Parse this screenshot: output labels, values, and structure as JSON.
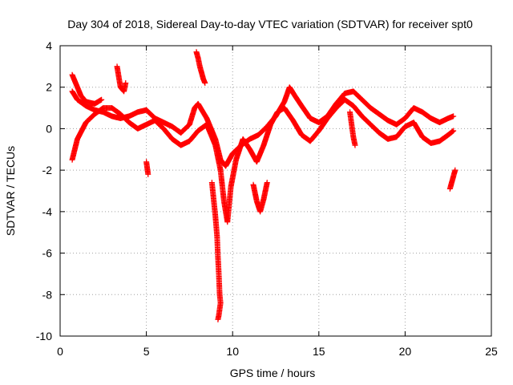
{
  "chart_data": {
    "type": "scatter",
    "title": "Day 304 of 2018, Sidereal Day-to-day VTEC variation (SDTVAR) for receiver spt0",
    "xlabel": "GPS time / hours",
    "ylabel": "SDTVAR / TECUs",
    "xlim": [
      0,
      25
    ],
    "ylim": [
      -10,
      4
    ],
    "xticks": [
      0,
      5,
      10,
      15,
      20,
      25
    ],
    "yticks": [
      -10,
      -8,
      -6,
      -4,
      -2,
      0,
      2,
      4
    ],
    "grid": true,
    "marker": "+",
    "series": [
      {
        "name": "SDTVAR",
        "color": "#ff0000",
        "tracks": [
          [
            [
              0.7,
              1.8
            ],
            [
              1.0,
              1.4
            ],
            [
              1.5,
              1.1
            ],
            [
              2.0,
              0.9
            ],
            [
              2.5,
              0.8
            ],
            [
              3.0,
              0.6
            ],
            [
              3.5,
              0.5
            ],
            [
              4.0,
              0.6
            ],
            [
              4.5,
              0.8
            ],
            [
              5.0,
              0.9
            ],
            [
              5.5,
              0.5
            ],
            [
              6.0,
              0.3
            ],
            [
              6.5,
              0.1
            ],
            [
              7.0,
              -0.2
            ],
            [
              7.5,
              0.2
            ],
            [
              7.8,
              1.0
            ],
            [
              8.0,
              1.2
            ],
            [
              8.5,
              0.5
            ],
            [
              9.0,
              -0.5
            ],
            [
              9.3,
              -1.5
            ],
            [
              9.6,
              -1.8
            ],
            [
              10.0,
              -1.2
            ],
            [
              10.5,
              -0.8
            ],
            [
              11.0,
              -0.5
            ],
            [
              11.5,
              -0.3
            ],
            [
              12.0,
              0.1
            ],
            [
              12.5,
              0.6
            ],
            [
              13.0,
              1.3
            ],
            [
              13.3,
              2.0
            ],
            [
              13.6,
              1.6
            ],
            [
              14.0,
              1.1
            ],
            [
              14.5,
              0.5
            ],
            [
              15.0,
              0.3
            ],
            [
              15.5,
              0.6
            ],
            [
              16.0,
              1.2
            ],
            [
              16.5,
              1.7
            ],
            [
              17.0,
              1.8
            ],
            [
              17.5,
              1.4
            ],
            [
              18.0,
              1.0
            ],
            [
              18.5,
              0.7
            ],
            [
              19.0,
              0.4
            ],
            [
              19.5,
              0.2
            ],
            [
              20.0,
              0.5
            ],
            [
              20.5,
              1.0
            ],
            [
              21.0,
              0.8
            ],
            [
              21.5,
              0.5
            ],
            [
              22.0,
              0.3
            ],
            [
              22.5,
              0.5
            ],
            [
              22.8,
              0.6
            ]
          ],
          [
            [
              0.7,
              -1.5
            ],
            [
              1.0,
              -0.5
            ],
            [
              1.5,
              0.3
            ],
            [
              2.0,
              0.7
            ],
            [
              2.5,
              1.0
            ],
            [
              3.0,
              1.0
            ],
            [
              3.5,
              0.7
            ],
            [
              4.0,
              0.3
            ],
            [
              4.5,
              0.0
            ],
            [
              5.0,
              0.2
            ],
            [
              5.5,
              0.4
            ],
            [
              6.0,
              0.0
            ],
            [
              6.5,
              -0.5
            ],
            [
              7.0,
              -0.8
            ],
            [
              7.5,
              -0.6
            ],
            [
              8.0,
              -0.1
            ],
            [
              8.5,
              0.2
            ],
            [
              9.0,
              -0.8
            ],
            [
              9.3,
              -2.0
            ],
            [
              9.5,
              -3.5
            ],
            [
              9.7,
              -4.5
            ],
            [
              9.9,
              -2.8
            ],
            [
              10.2,
              -1.5
            ],
            [
              10.6,
              -0.5
            ],
            [
              11.0,
              -1.0
            ],
            [
              11.4,
              -1.6
            ],
            [
              11.8,
              -0.8
            ],
            [
              12.2,
              0.2
            ],
            [
              12.6,
              0.8
            ],
            [
              13.0,
              1.0
            ],
            [
              13.5,
              0.4
            ],
            [
              14.0,
              -0.3
            ],
            [
              14.5,
              -0.6
            ],
            [
              15.0,
              -0.1
            ],
            [
              15.5,
              0.5
            ],
            [
              16.0,
              1.0
            ],
            [
              16.5,
              1.4
            ],
            [
              17.0,
              1.1
            ],
            [
              17.5,
              0.6
            ],
            [
              18.0,
              0.2
            ],
            [
              18.5,
              -0.2
            ],
            [
              19.0,
              -0.5
            ],
            [
              19.5,
              -0.4
            ],
            [
              20.0,
              0.1
            ],
            [
              20.5,
              0.3
            ],
            [
              21.0,
              -0.4
            ],
            [
              21.5,
              -0.7
            ],
            [
              22.0,
              -0.6
            ],
            [
              22.5,
              -0.3
            ],
            [
              22.8,
              -0.1
            ]
          ],
          [
            [
              0.7,
              2.6
            ],
            [
              0.9,
              2.2
            ],
            [
              1.2,
              1.6
            ],
            [
              1.5,
              1.3
            ],
            [
              2.0,
              1.2
            ],
            [
              2.4,
              1.4
            ]
          ],
          [
            [
              3.3,
              3.0
            ],
            [
              3.4,
              2.5
            ],
            [
              3.5,
              2.0
            ],
            [
              3.7,
              1.8
            ],
            [
              3.8,
              2.2
            ]
          ],
          [
            [
              7.9,
              3.7
            ],
            [
              8.0,
              3.4
            ],
            [
              8.1,
              3.0
            ],
            [
              8.2,
              2.7
            ],
            [
              8.3,
              2.4
            ],
            [
              8.4,
              2.2
            ]
          ],
          [
            [
              8.8,
              -2.6
            ],
            [
              9.0,
              -4.2
            ],
            [
              9.1,
              -5.2
            ],
            [
              9.15,
              -6.2
            ],
            [
              9.2,
              -7.0
            ],
            [
              9.25,
              -8.0
            ],
            [
              9.3,
              -8.4
            ],
            [
              9.2,
              -9.0
            ],
            [
              9.15,
              -9.2
            ]
          ],
          [
            [
              11.2,
              -2.7
            ],
            [
              11.4,
              -3.5
            ],
            [
              11.6,
              -4.0
            ],
            [
              11.8,
              -3.4
            ],
            [
              12.0,
              -2.6
            ]
          ],
          [
            [
              16.8,
              0.8
            ],
            [
              16.9,
              0.2
            ],
            [
              17.0,
              -0.4
            ],
            [
              17.1,
              -0.8
            ]
          ],
          [
            [
              5.0,
              -1.6
            ],
            [
              5.05,
              -1.9
            ],
            [
              5.1,
              -2.2
            ]
          ],
          [
            [
              22.6,
              -2.9
            ],
            [
              22.7,
              -2.6
            ],
            [
              22.8,
              -2.3
            ],
            [
              22.9,
              -2.0
            ]
          ]
        ]
      }
    ]
  }
}
